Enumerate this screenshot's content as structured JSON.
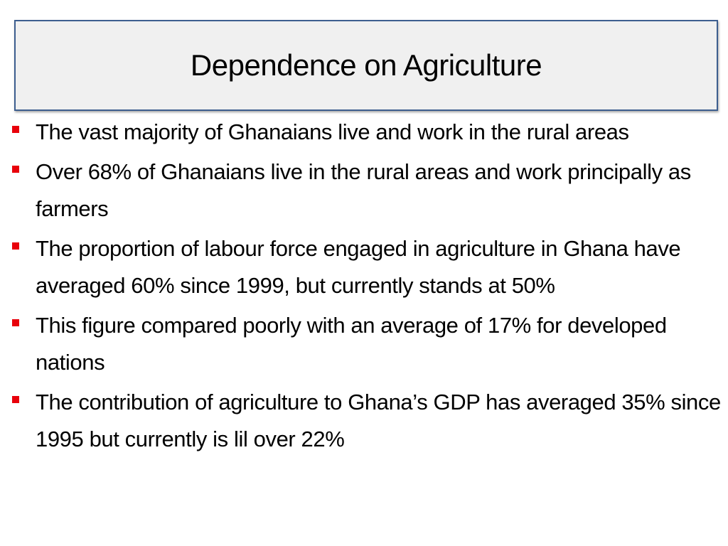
{
  "slide": {
    "title": "Dependence on Agriculture",
    "bullet_color": "#e8000b",
    "title_border_color": "#3d5e8f",
    "title_background": "#f0f0f0",
    "bullets": [
      "The vast majority of Ghanaians live and work in the rural areas",
      "Over 68% of Ghanaians live in the rural areas and work principally as farmers",
      "The proportion of labour force engaged in agriculture in Ghana have averaged 60% since 1999, but currently stands at 50%",
      "This figure compared poorly with an average of 17% for developed nations",
      "The contribution of agriculture to Ghana’s GDP has averaged 35% since 1995 but currently is lil over 22%"
    ]
  }
}
